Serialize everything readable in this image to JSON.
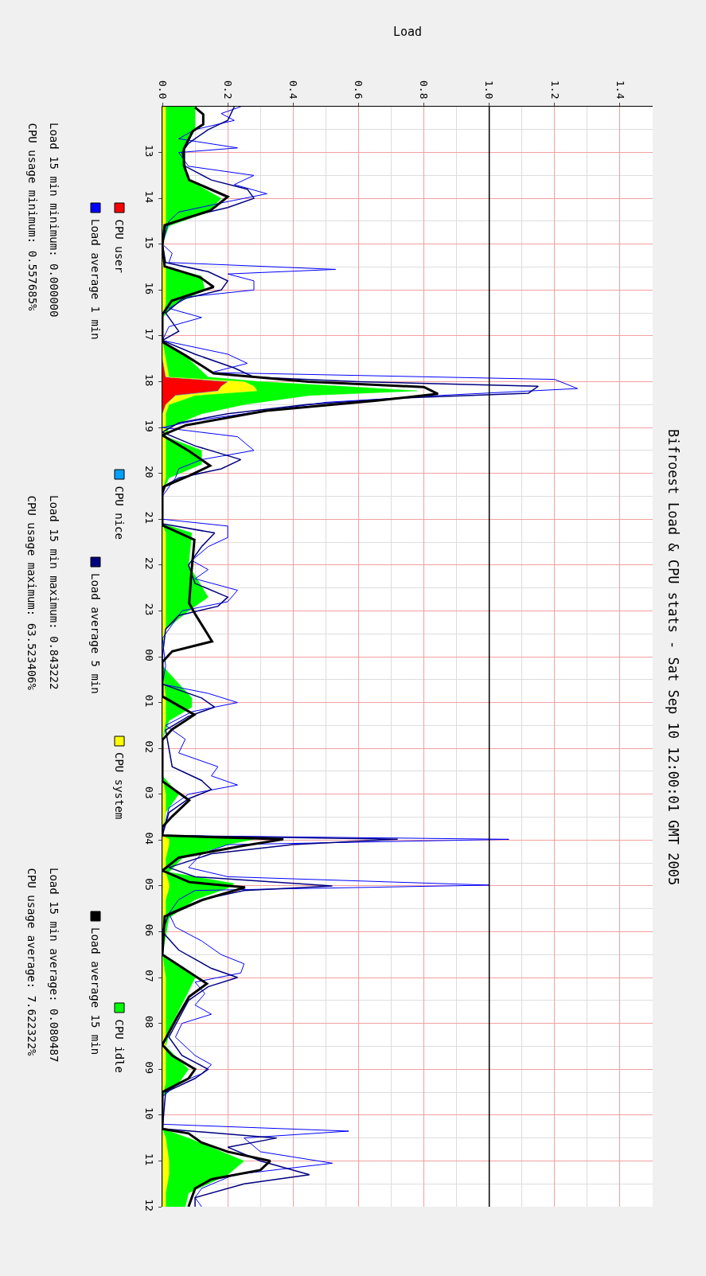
{
  "chart_data": {
    "type": "area",
    "title": "Bifroest Load & CPU stats - Sat Sep 10 12:00:01 GMT 2005",
    "ylabel": "Load",
    "stacked": true,
    "orientation": "horizontal",
    "x": [
      "2005-09-09T12:00",
      "2005-09-09T12:30",
      "2005-09-09T13:00",
      "2005-09-09T13:36",
      "2005-09-09T14:00",
      "2005-09-09T14:18",
      "2005-09-09T14:36",
      "2005-09-09T15:00",
      "2005-09-09T15:30",
      "2005-09-09T15:42",
      "2005-09-09T16:00",
      "2005-09-09T16:18",
      "2005-09-09T16:36",
      "2005-09-09T17:06",
      "2005-09-09T17:30",
      "2005-09-09T17:54",
      "2005-09-09T18:00",
      "2005-09-09T18:06",
      "2005-09-09T18:12",
      "2005-09-09T18:18",
      "2005-09-09T18:30",
      "2005-09-09T18:42",
      "2005-09-09T19:00",
      "2005-09-09T19:12",
      "2005-09-09T19:30",
      "2005-09-09T19:48",
      "2005-09-09T20:06",
      "2005-09-09T20:24",
      "2005-09-09T21:06",
      "2005-09-09T21:18",
      "2005-09-09T22:00",
      "2005-09-09T22:42",
      "2005-09-09T23:00",
      "2005-09-09T23:24",
      "2005-09-09T23:48",
      "2005-09-10T00:12",
      "2005-09-10T00:54",
      "2005-09-10T01:06",
      "2005-09-10T01:24",
      "2005-09-10T01:48",
      "2005-09-10T02:36",
      "2005-09-10T03:00",
      "2005-09-10T03:24",
      "2005-09-10T03:54",
      "2005-09-10T03:59",
      "2005-09-10T04:06",
      "2005-09-10T04:24",
      "2005-09-10T04:42",
      "2005-09-10T04:57",
      "2005-09-10T05:03",
      "2005-09-10T05:18",
      "2005-09-10T05:42",
      "2005-09-10T06:30",
      "2005-09-10T07:00",
      "2005-09-10T07:18",
      "2005-09-10T08:00",
      "2005-09-10T08:30",
      "2005-09-10T09:00",
      "2005-09-10T09:18",
      "2005-09-10T09:36",
      "2005-09-10T10:18",
      "2005-09-10T10:30",
      "2005-09-10T11:00",
      "2005-09-10T11:18",
      "2005-09-10T11:42",
      "2005-09-10T12:00"
    ],
    "series": [
      {
        "name": "CPU user",
        "color": "#ff0000",
        "values": [
          0,
          0,
          0,
          0,
          0,
          0,
          0,
          0,
          0,
          0,
          0,
          0,
          0,
          0,
          0,
          0.01,
          0.2,
          0.18,
          0.17,
          0.04,
          0.01,
          0,
          0,
          0,
          0,
          0,
          0,
          0,
          0,
          0,
          0,
          0,
          0,
          0,
          0,
          0,
          0,
          0,
          0,
          0,
          0,
          0,
          0,
          0,
          0,
          0,
          0,
          0,
          0,
          0,
          0,
          0,
          0,
          0,
          0,
          0,
          0,
          0,
          0,
          0,
          0,
          0,
          0,
          0,
          0,
          0
        ]
      },
      {
        "name": "CPU nice",
        "color": "#00a0ff",
        "values": [
          null,
          null,
          null,
          null,
          null,
          null,
          null,
          null,
          null,
          null,
          null,
          null,
          null,
          null,
          null,
          null,
          null,
          null,
          null,
          null,
          null,
          null,
          null,
          null,
          null,
          null,
          null,
          null,
          null,
          null,
          null,
          null,
          null,
          null,
          null,
          null,
          null,
          null,
          null,
          null,
          null,
          null,
          null,
          null,
          null,
          null,
          null,
          null,
          null,
          null,
          null,
          null,
          null,
          null,
          null,
          null,
          null,
          null,
          null,
          null,
          null,
          null,
          null,
          null,
          null,
          null
        ]
      },
      {
        "name": "CPU system",
        "color": "#ffff00",
        "values": [
          0.01,
          0.01,
          0.01,
          0.01,
          0.01,
          0.01,
          0.01,
          0,
          0.01,
          0.01,
          0.01,
          0.01,
          0,
          0,
          0.01,
          0.01,
          0.05,
          0.1,
          0.12,
          0.06,
          0.01,
          0.01,
          0.01,
          0.01,
          0.01,
          0.01,
          0.01,
          0,
          0,
          0.01,
          0.01,
          0.01,
          0.01,
          0.01,
          0,
          0,
          0.01,
          0.01,
          0.01,
          0,
          0,
          0.01,
          0.01,
          0,
          0.02,
          0.02,
          0.01,
          0.01,
          0.02,
          0.02,
          0.01,
          0.01,
          0,
          0.01,
          0.01,
          0.01,
          0.01,
          0.01,
          0.01,
          0,
          0,
          0.01,
          0.02,
          0.02,
          0.01,
          0.01
        ]
      },
      {
        "name": "CPU idle",
        "color": "#00ff00",
        "values": [
          0.09,
          0.09,
          0.05,
          0.07,
          0.17,
          0.13,
          0.01,
          0,
          0,
          0.11,
          0.12,
          0.03,
          0,
          0,
          0.07,
          0.12,
          0.05,
          0.27,
          0.49,
          0.35,
          0.23,
          0.11,
          0.01,
          0,
          0.11,
          0.11,
          0.01,
          0,
          0,
          0.08,
          0.07,
          0.13,
          0.07,
          0,
          0,
          0,
          0.08,
          0.08,
          0.01,
          0,
          0,
          0.04,
          0,
          0,
          0.26,
          0.18,
          0.05,
          0.01,
          0.2,
          0.18,
          0.09,
          0.01,
          0,
          0.09,
          0.07,
          0.02,
          0,
          0.07,
          0.04,
          0,
          0,
          0.07,
          0.23,
          0.18,
          0.07,
          0.06
        ]
      },
      {
        "name": "Load average 1 min",
        "type": "line",
        "color": "#0000ff",
        "x": [
          "2005-09-09T12:00",
          "2005-09-09T12:09",
          "2005-09-09T12:18",
          "2005-09-09T12:30",
          "2005-09-09T12:42",
          "2005-09-09T12:54",
          "2005-09-09T13:00",
          "2005-09-09T13:18",
          "2005-09-09T13:30",
          "2005-09-09T13:42",
          "2005-09-09T13:54",
          "2005-09-09T14:06",
          "2005-09-09T14:18",
          "2005-09-09T14:30",
          "2005-09-09T15:00",
          "2005-09-09T15:12",
          "2005-09-09T15:24",
          "2005-09-09T15:33",
          "2005-09-09T15:39",
          "2005-09-09T15:48",
          "2005-09-09T16:00",
          "2005-09-09T16:09",
          "2005-09-09T16:24",
          "2005-09-09T16:36",
          "2005-09-09T16:48",
          "2005-09-09T17:06",
          "2005-09-09T17:24",
          "2005-09-09T17:36",
          "2005-09-09T17:48",
          "2005-09-09T17:57",
          "2005-09-09T18:09",
          "2005-09-09T18:18",
          "2005-09-09T18:27",
          "2005-09-09T18:39",
          "2005-09-09T18:51",
          "2005-09-09T19:00",
          "2005-09-09T19:12",
          "2005-09-09T19:30",
          "2005-09-09T19:42",
          "2005-09-09T19:54",
          "2005-09-09T20:06",
          "2005-09-09T20:30",
          "2005-09-09T21:00",
          "2005-09-09T21:09",
          "2005-09-09T21:24",
          "2005-09-09T21:36",
          "2005-09-09T21:54",
          "2005-09-09T22:06",
          "2005-09-09T22:18",
          "2005-09-09T22:33",
          "2005-09-09T22:48",
          "2005-09-09T23:00",
          "2005-09-09T23:18",
          "2005-09-09T23:36",
          "2005-09-10T00:12",
          "2005-09-10T00:36",
          "2005-09-10T00:48",
          "2005-09-10T01:00",
          "2005-09-10T01:12",
          "2005-09-10T01:30",
          "2005-09-10T01:48",
          "2005-09-10T02:06",
          "2005-09-10T02:24",
          "2005-09-10T02:36",
          "2005-09-10T02:48",
          "2005-09-10T03:00",
          "2005-09-10T03:18",
          "2005-09-10T03:54",
          "2005-09-10T03:59",
          "2005-09-10T04:06",
          "2005-09-10T04:18",
          "2005-09-10T04:36",
          "2005-09-10T04:48",
          "2005-09-10T04:59",
          "2005-09-10T05:06",
          "2005-09-10T05:18",
          "2005-09-10T05:36",
          "2005-09-10T05:54",
          "2005-09-10T06:12",
          "2005-09-10T06:30",
          "2005-09-10T06:42",
          "2005-09-10T06:54",
          "2005-09-10T07:06",
          "2005-09-10T07:21",
          "2005-09-10T07:36",
          "2005-09-10T07:48",
          "2005-09-10T08:00",
          "2005-09-10T08:18",
          "2005-09-10T08:42",
          "2005-09-10T08:54",
          "2005-09-10T09:06",
          "2005-09-10T09:18",
          "2005-09-10T09:36",
          "2005-09-10T10:12",
          "2005-09-10T10:21",
          "2005-09-10T10:30",
          "2005-09-10T10:48",
          "2005-09-10T11:03",
          "2005-09-10T11:18",
          "2005-09-10T11:36",
          "2005-09-10T11:48",
          "2005-09-10T12:00"
        ],
        "values": [
          0.24,
          0.18,
          0.22,
          0.1,
          0.05,
          0.23,
          0.05,
          0.08,
          0.28,
          0.22,
          0.32,
          0.18,
          0.05,
          0.02,
          0,
          0.03,
          0.02,
          0.53,
          0.2,
          0.28,
          0.28,
          0.08,
          0.02,
          0.12,
          0.02,
          0,
          0.2,
          0.26,
          0.15,
          1.2,
          1.27,
          0.85,
          0.5,
          0.3,
          0.1,
          0,
          0.23,
          0.28,
          0.12,
          0.05,
          0.04,
          0,
          0,
          0.2,
          0.2,
          0.14,
          0.09,
          0.14,
          0.1,
          0.23,
          0.2,
          0.06,
          0.03,
          0,
          0.01,
          0,
          0.14,
          0.23,
          0.09,
          0.01,
          0.07,
          0.05,
          0.17,
          0.15,
          0.23,
          0.08,
          0.02,
          0,
          1.06,
          0.2,
          0.12,
          0.08,
          0.2,
          1.0,
          0.1,
          0.05,
          0.02,
          0.04,
          0.12,
          0.18,
          0.25,
          0.24,
          0.1,
          0.13,
          0.1,
          0.15,
          0.06,
          0.04,
          0.1,
          0.15,
          0.12,
          0.05,
          0,
          0,
          0.57,
          0.25,
          0.3,
          0.52,
          0.22,
          0.12,
          0.1,
          0.12
        ]
      },
      {
        "name": "Load average 5 min",
        "type": "line",
        "color": "#000080",
        "x": [
          "2005-09-09T12:00",
          "2005-09-09T12:18",
          "2005-09-09T12:30",
          "2005-09-09T12:48",
          "2005-09-09T13:00",
          "2005-09-09T13:18",
          "2005-09-09T13:36",
          "2005-09-09T13:48",
          "2005-09-09T14:00",
          "2005-09-09T14:12",
          "2005-09-09T14:24",
          "2005-09-09T14:36",
          "2005-09-09T15:00",
          "2005-09-09T15:24",
          "2005-09-09T15:36",
          "2005-09-09T15:48",
          "2005-09-09T16:00",
          "2005-09-09T16:12",
          "2005-09-09T16:30",
          "2005-09-09T16:54",
          "2005-09-09T17:06",
          "2005-09-09T17:24",
          "2005-09-09T17:42",
          "2005-09-09T17:54",
          "2005-09-09T18:00",
          "2005-09-09T18:06",
          "2005-09-09T18:15",
          "2005-09-09T18:21",
          "2005-09-09T18:30",
          "2005-09-09T18:42",
          "2005-09-09T18:54",
          "2005-09-09T19:06",
          "2005-09-09T19:24",
          "2005-09-09T19:42",
          "2005-09-09T19:54",
          "2005-09-09T20:06",
          "2005-09-09T20:18",
          "2005-09-09T21:06",
          "2005-09-09T21:18",
          "2005-09-09T21:36",
          "2005-09-09T22:00",
          "2005-09-09T22:24",
          "2005-09-09T22:42",
          "2005-09-09T22:54",
          "2005-09-09T23:06",
          "2005-09-09T23:24",
          "2005-09-10T00:00",
          "2005-09-10T00:36",
          "2005-09-10T00:54",
          "2005-09-10T01:06",
          "2005-09-10T01:18",
          "2005-09-10T01:36",
          "2005-09-10T02:00",
          "2005-09-10T02:24",
          "2005-09-10T02:42",
          "2005-09-10T02:54",
          "2005-09-10T03:06",
          "2005-09-10T03:24",
          "2005-09-10T03:54",
          "2005-09-10T03:59",
          "2005-09-10T04:06",
          "2005-09-10T04:18",
          "2005-09-10T04:36",
          "2005-09-10T04:48",
          "2005-09-10T05:00",
          "2005-09-10T05:06",
          "2005-09-10T05:18",
          "2005-09-10T05:36",
          "2005-09-10T06:00",
          "2005-09-10T06:24",
          "2005-09-10T06:48",
          "2005-09-10T07:00",
          "2005-09-10T07:12",
          "2005-09-10T07:30",
          "2005-09-10T07:54",
          "2005-09-10T08:18",
          "2005-09-10T08:42",
          "2005-09-10T09:00",
          "2005-09-10T09:12",
          "2005-09-10T09:30",
          "2005-09-10T10:18",
          "2005-09-10T10:30",
          "2005-09-10T10:42",
          "2005-09-10T11:00",
          "2005-09-10T11:18",
          "2005-09-10T11:30",
          "2005-09-10T11:48",
          "2005-09-10T12:00"
        ],
        "values": [
          0.22,
          0.2,
          0.14,
          0.08,
          0.06,
          0.07,
          0.15,
          0.26,
          0.28,
          0.2,
          0.08,
          0.01,
          0,
          0.01,
          0.14,
          0.2,
          0.18,
          0.06,
          0.01,
          0.05,
          0,
          0.1,
          0.22,
          0.28,
          0.6,
          1.15,
          1.12,
          0.75,
          0.44,
          0.2,
          0.05,
          0,
          0.1,
          0.24,
          0.18,
          0.05,
          0,
          0,
          0.16,
          0.12,
          0.08,
          0.1,
          0.2,
          0.17,
          0.05,
          0.01,
          0,
          0,
          0.12,
          0.16,
          0.08,
          0.01,
          0.02,
          0.03,
          0.12,
          0.15,
          0.08,
          0.02,
          0,
          0.72,
          0.4,
          0.15,
          0.02,
          0.1,
          0.52,
          0.25,
          0.12,
          0.02,
          0,
          0.05,
          0.15,
          0.23,
          0.14,
          0.08,
          0.05,
          0.02,
          0.06,
          0.14,
          0.1,
          0.01,
          0,
          0.35,
          0.2,
          0.3,
          0.45,
          0.25,
          0.1,
          0.1
        ]
      },
      {
        "name": "Load average 15 min",
        "type": "line",
        "color": "#000000",
        "x": [
          "2005-09-09T12:01",
          "2005-09-09T12:10",
          "2005-09-09T12:23",
          "2005-09-09T12:32",
          "2005-09-09T12:55",
          "2005-09-09T13:17",
          "2005-09-09T13:36",
          "2005-09-09T13:58",
          "2005-09-09T14:16",
          "2005-09-09T14:35",
          "2005-09-09T15:02",
          "2005-09-09T15:29",
          "2005-09-09T15:43",
          "2005-09-09T15:56",
          "2005-09-09T16:14",
          "2005-09-09T16:32",
          "2005-09-09T17:08",
          "2005-09-09T17:26",
          "2005-09-09T17:49",
          "2005-09-09T18:00",
          "2005-09-09T18:07",
          "2005-09-09T18:16",
          "2005-09-09T18:25",
          "2005-09-09T18:38",
          "2005-09-09T18:57",
          "2005-09-09T19:10",
          "2005-09-09T19:31",
          "2005-09-09T19:50",
          "2005-09-09T20:03",
          "2005-09-09T20:17",
          "2005-09-09T20:26",
          "2005-09-09T21:08",
          "2005-09-09T21:27",
          "2005-09-09T22:14",
          "2005-09-09T22:50",
          "2005-09-09T23:04",
          "2005-09-09T23:40",
          "2005-09-09T23:53",
          "2005-09-10T00:07",
          "2005-09-10T00:52",
          "2005-09-10T01:16",
          "2005-09-10T01:35",
          "2005-09-10T01:49",
          "2005-09-10T02:43",
          "2005-09-10T03:08",
          "2005-09-10T03:29",
          "2005-09-10T03:43",
          "2005-09-10T03:54",
          "2005-09-10T03:59",
          "2005-09-10T04:08",
          "2005-09-10T04:23",
          "2005-09-10T04:40",
          "2005-09-10T04:55",
          "2005-09-10T05:02",
          "2005-09-10T05:18",
          "2005-09-10T05:40",
          "2005-09-10T06:30",
          "2005-09-10T07:08",
          "2005-09-10T07:25",
          "2005-09-10T07:52",
          "2005-09-10T08:28",
          "2005-09-10T08:42",
          "2005-09-10T09:00",
          "2005-09-10T09:12",
          "2005-09-10T09:30",
          "2005-09-10T10:18",
          "2005-09-10T10:24",
          "2005-09-10T10:36",
          "2005-09-10T10:48",
          "2005-09-10T11:00",
          "2005-09-10T11:12",
          "2005-09-10T11:24",
          "2005-09-10T11:36",
          "2005-09-10T12:00"
        ],
        "values": [
          0.1,
          0.125,
          0.125,
          0.093,
          0.066,
          0.066,
          0.082,
          0.2,
          0.147,
          0.007,
          0,
          0.007,
          0.114,
          0.157,
          0.029,
          0,
          0,
          0.072,
          0.157,
          0.446,
          0.8,
          0.843,
          0.65,
          0.318,
          0.072,
          0,
          0.082,
          0.146,
          0.082,
          0.007,
          0,
          0,
          0.098,
          0.088,
          0.082,
          0.1,
          0.152,
          0.03,
          0,
          0,
          0.098,
          0.03,
          0,
          0,
          0.082,
          0.03,
          0,
          0,
          0.37,
          0.24,
          0.05,
          0,
          0.082,
          0.253,
          0.125,
          0.007,
          0,
          0.136,
          0.082,
          0.045,
          0,
          0.03,
          0.1,
          0.08,
          0,
          0,
          0.08,
          0.12,
          0.2,
          0.33,
          0.3,
          0.15,
          0.1,
          0.08
        ]
      }
    ],
    "ylim": [
      "2005-09-10T12:00",
      "2005-09-09T12:00"
    ],
    "yticks": [
      {
        "value": "2005-09-09T13:00",
        "label": "13"
      },
      {
        "value": "2005-09-09T14:00",
        "label": "14"
      },
      {
        "value": "2005-09-09T15:00",
        "label": "15"
      },
      {
        "value": "2005-09-09T16:00",
        "label": "16"
      },
      {
        "value": "2005-09-09T17:00",
        "label": "17"
      },
      {
        "value": "2005-09-09T18:00",
        "label": "18"
      },
      {
        "value": "2005-09-09T19:00",
        "label": "19"
      },
      {
        "value": "2005-09-09T20:00",
        "label": "20"
      },
      {
        "value": "2005-09-09T21:00",
        "label": "21"
      },
      {
        "value": "2005-09-09T22:00",
        "label": "22"
      },
      {
        "value": "2005-09-09T23:00",
        "label": "23"
      },
      {
        "value": "2005-09-10T00:00",
        "label": "00"
      },
      {
        "value": "2005-09-10T01:00",
        "label": "01"
      },
      {
        "value": "2005-09-10T02:00",
        "label": "02"
      },
      {
        "value": "2005-09-10T03:00",
        "label": "03"
      },
      {
        "value": "2005-09-10T04:00",
        "label": "04"
      },
      {
        "value": "2005-09-10T05:00",
        "label": "05"
      },
      {
        "value": "2005-09-10T06:00",
        "label": "06"
      },
      {
        "value": "2005-09-10T07:00",
        "label": "07"
      },
      {
        "value": "2005-09-10T08:00",
        "label": "08"
      },
      {
        "value": "2005-09-10T09:00",
        "label": "09"
      },
      {
        "value": "2005-09-10T10:00",
        "label": "10"
      },
      {
        "value": "2005-09-10T11:00",
        "label": "11"
      },
      {
        "value": "2005-09-10T12:00",
        "label": "12"
      }
    ],
    "xlim": [
      0,
      1.5
    ],
    "xticks": [
      {
        "value": 0,
        "label": "0.0"
      },
      {
        "value": 0.2,
        "label": "0.2"
      },
      {
        "value": 0.4,
        "label": "0.4"
      },
      {
        "value": 0.6,
        "label": "0.6"
      },
      {
        "value": 0.8,
        "label": "0.8"
      },
      {
        "value": 1.0,
        "label": "1.0"
      },
      {
        "value": 1.2,
        "label": "1.2"
      },
      {
        "value": 1.4,
        "label": "1.4"
      }
    ],
    "ref_lines": [
      {
        "axis": "x",
        "value": 1.0,
        "color": "#000000"
      }
    ],
    "grid": true,
    "legend": "left",
    "annotations": [
      "Load 15 min minimum: 0.000000",
      "Load 15 min maximum: 0.843222",
      "Load 15 min average: 0.080487",
      "CPU usage minimum: 0.557685%",
      "CPU usage maximum: 63.523406%",
      "CPU usage average: 7.622322%"
    ]
  }
}
